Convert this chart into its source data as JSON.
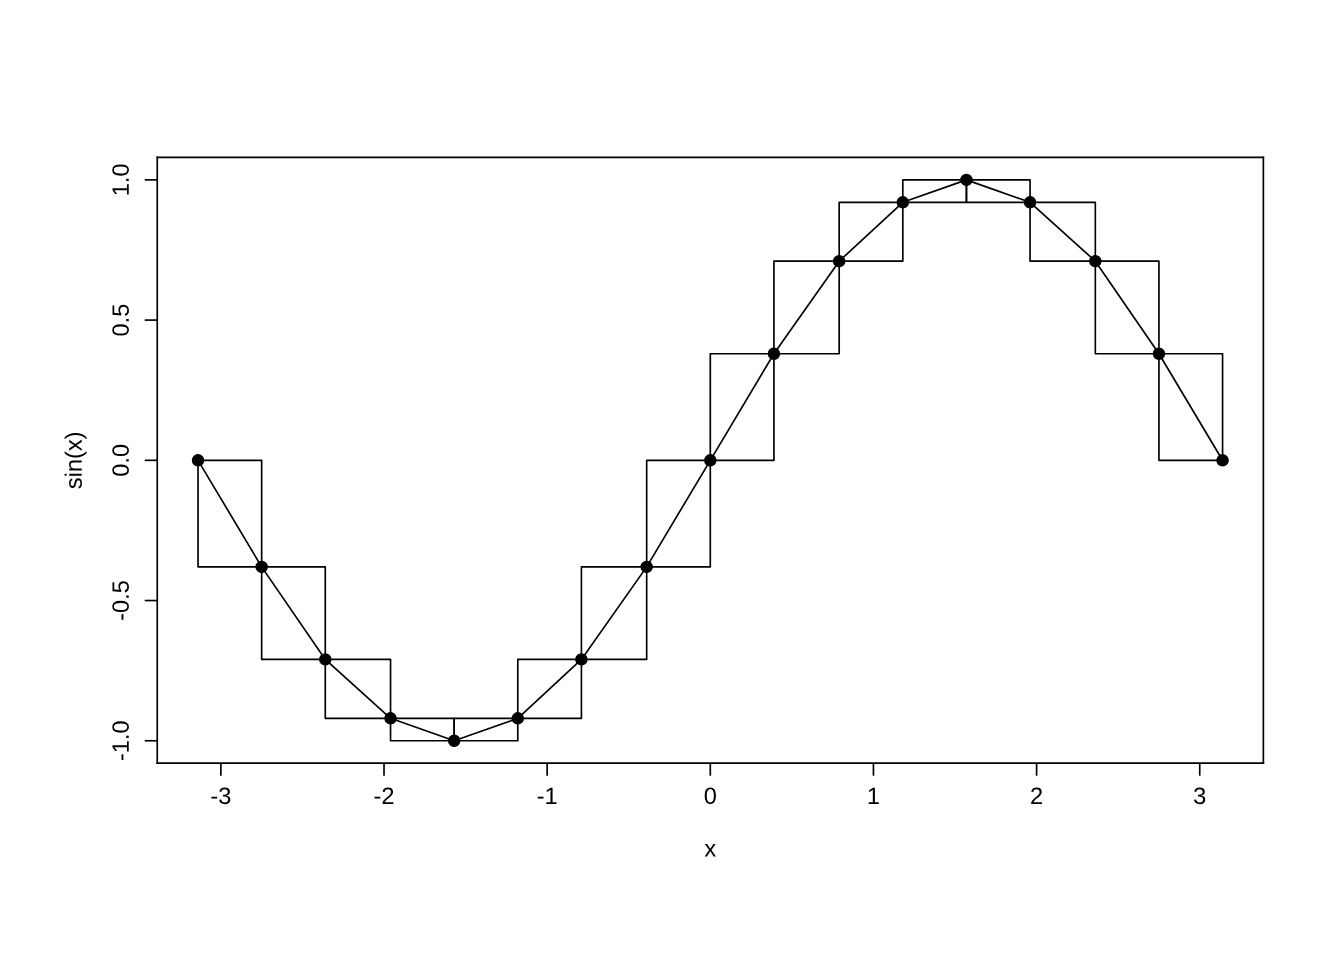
{
  "chart_data": {
    "type": "line",
    "xlabel": "x",
    "ylabel": "sin(x)",
    "x": [
      -3.14,
      -2.75,
      -2.36,
      -1.96,
      -1.57,
      -1.18,
      -0.79,
      -0.39,
      0,
      0.39,
      0.79,
      1.18,
      1.57,
      1.96,
      2.36,
      2.75,
      3.14
    ],
    "series": [
      {
        "color": "#000000",
        "marker": "circle",
        "values": [
          0,
          -0.38,
          -0.71,
          -0.92,
          -1,
          -0.92,
          -0.71,
          -0.38,
          0,
          0.38,
          0.71,
          0.92,
          1,
          0.92,
          0.71,
          0.38,
          0
        ]
      },
      {
        "type": "step",
        "color": "#000000",
        "values": [
          0,
          -0.38,
          -0.71,
          -0.92,
          -1,
          -0.92,
          -0.71,
          -0.38,
          0,
          0.38,
          0.71,
          0.92,
          1,
          0.92,
          0.71,
          0.38,
          0
        ]
      },
      {
        "type": "step",
        "color": "#000000",
        "values": [
          0,
          -0.38,
          -0.71,
          -0.92,
          -1,
          -0.92,
          -0.71,
          -0.38,
          0,
          0.38,
          0.71,
          0.92,
          1,
          0.92,
          0.71,
          0.38,
          0
        ]
      }
    ],
    "xlim": [
      -3.39,
      3.39
    ],
    "ylim": [
      -1.08,
      1.08
    ],
    "xticks": [
      -3,
      -2,
      -1,
      0,
      1,
      2,
      3
    ],
    "yticks": [
      {
        "value": -1,
        "label": "-1.0"
      },
      {
        "value": -0.5,
        "label": "-0.5"
      },
      {
        "value": 0,
        "label": "0.0"
      },
      {
        "value": 0.5,
        "label": "0.5"
      },
      {
        "value": 1,
        "label": "1.0"
      }
    ],
    "grid": false,
    "legend": false
  }
}
